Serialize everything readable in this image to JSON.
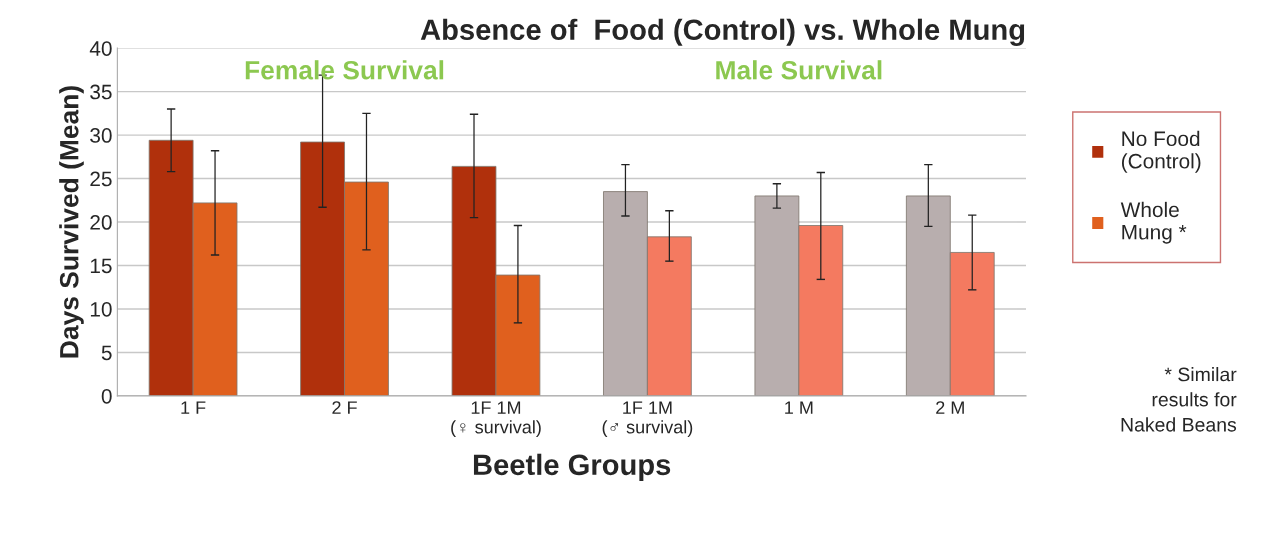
{
  "chart_data": {
    "type": "bar",
    "title": "Absence of  Food (Control) vs. Whole Mung",
    "xlabel": "Beetle Groups",
    "ylabel": "Days Survived (Mean)",
    "categories": [
      "1 F",
      "2 F",
      "1F 1M\n(♀ survival)",
      "1F 1M\n(♂ survival)",
      "1 M",
      "2 M"
    ],
    "series": [
      {
        "name": "No Food\n(Control)",
        "color": "#b0300c",
        "colors": [
          "#b0300c",
          "#b0300c",
          "#b0300c",
          "#b8aeae",
          "#b8aeae",
          "#b8aeae"
        ],
        "values": [
          29.4,
          29.2,
          26.4,
          23.5,
          23.0,
          23.0
        ],
        "errors": [
          [
            25.8,
            33.0
          ],
          [
            21.7,
            36.9
          ],
          [
            20.5,
            32.4
          ],
          [
            20.7,
            26.6
          ],
          [
            21.6,
            24.4
          ],
          [
            19.5,
            26.6
          ]
        ]
      },
      {
        "name": "Whole\nMung *",
        "color": "#e0601e",
        "colors": [
          "#e0601e",
          "#e0601e",
          "#e0601e",
          "#f47a60",
          "#f47a60",
          "#f47a60"
        ],
        "values": [
          22.2,
          24.6,
          13.9,
          18.3,
          19.6,
          16.5
        ],
        "errors": [
          [
            16.2,
            28.2
          ],
          [
            16.8,
            32.5
          ],
          [
            8.4,
            19.6
          ],
          [
            15.5,
            21.3
          ],
          [
            13.4,
            25.7
          ],
          [
            12.2,
            20.8
          ]
        ]
      }
    ],
    "ylim": [
      0,
      40
    ],
    "yticks": [
      0,
      5,
      10,
      15,
      20,
      25,
      30,
      35,
      40
    ],
    "grid": "y",
    "legend": "right",
    "annotations": [
      "Female Survival",
      "Male Survival",
      "* Similar\nresults for\nNaked Beans"
    ]
  }
}
